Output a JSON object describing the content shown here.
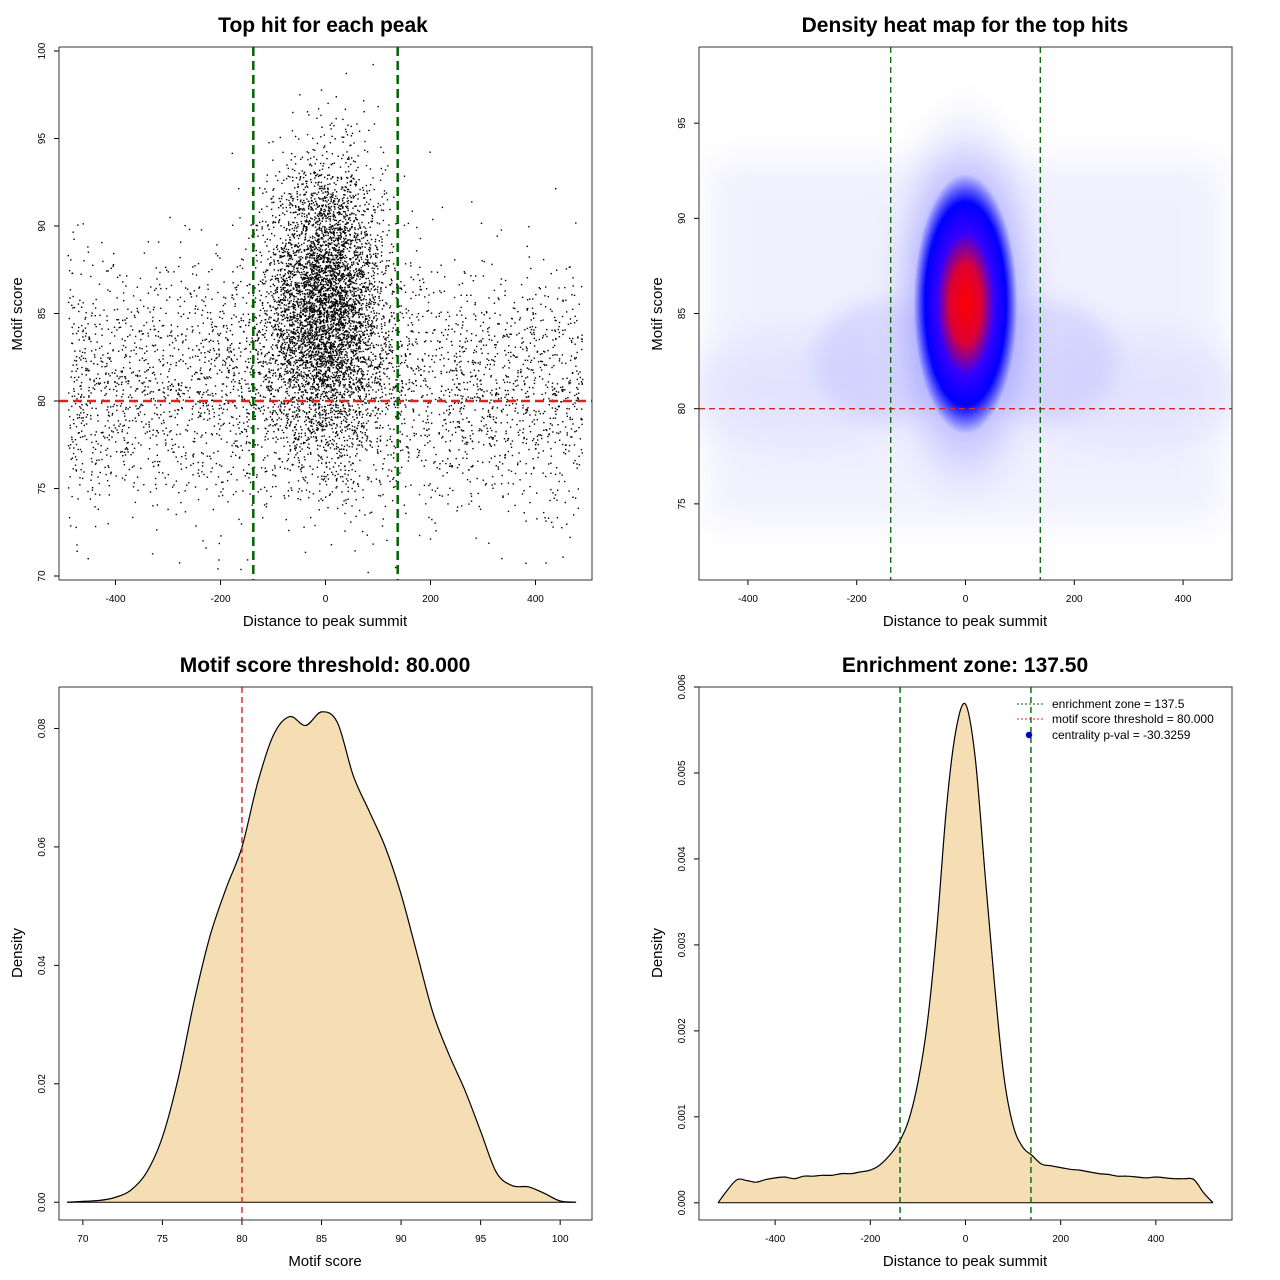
{
  "colors": {
    "points": "#000000",
    "threshold_line": "#dd2222",
    "zone_line": "#006400",
    "density_fill": "#f5deb3",
    "heat_low": "#ffffff",
    "heat_mid": "#0000ff",
    "heat_high": "#ff0000",
    "pval_marker": "#0000cc"
  },
  "chart_data": [
    {
      "id": "scatter",
      "type": "scatter",
      "title": "Top hit for each peak",
      "xlabel": "Distance to peak summit",
      "ylabel": "Motif score",
      "xlim": [
        -500,
        500
      ],
      "ylim": [
        70,
        100
      ],
      "xticks": [
        -400,
        -200,
        0,
        200,
        400
      ],
      "yticks": [
        70,
        75,
        80,
        85,
        90,
        95,
        100
      ],
      "threshold_y": 80,
      "zone_x": [
        -137.5,
        137.5
      ],
      "point_cloud": {
        "central_mean_x": 0,
        "central_sd_x": 55,
        "central_mean_y": 85.5,
        "central_sd_y": 4.0,
        "background_x_range": [
          -490,
          490
        ],
        "background_mean_y": 81,
        "background_sd_y": 3.5
      }
    },
    {
      "id": "heatmap",
      "type": "heatmap",
      "title": "Density heat map for the top hits",
      "xlabel": "Distance to peak summit",
      "ylabel": "Motif score",
      "xlim": [
        -490,
        490
      ],
      "ylim": [
        71,
        99
      ],
      "xticks": [
        -400,
        -200,
        0,
        200,
        400
      ],
      "yticks": [
        75,
        80,
        85,
        90,
        95
      ],
      "threshold_y": 80,
      "zone_x": [
        -137.5,
        137.5
      ],
      "peak": {
        "x": 0,
        "y": 85.5
      }
    },
    {
      "id": "score-density",
      "type": "area",
      "title": "Motif score threshold: 80.000",
      "xlabel": "Motif score",
      "ylabel": "Density",
      "xlim": [
        68.5,
        102
      ],
      "ylim": [
        -0.003,
        0.087
      ],
      "xticks": [
        70,
        75,
        80,
        85,
        90,
        95,
        100
      ],
      "yticks": [
        0.0,
        0.02,
        0.04,
        0.06,
        0.08
      ],
      "ytick_labels": [
        "0.00",
        "0.02",
        "0.04",
        "0.06",
        "0.08"
      ],
      "threshold_x": 80,
      "x": [
        69,
        71,
        72,
        73,
        74,
        75,
        76,
        77,
        78,
        79,
        80,
        81,
        82,
        83,
        84,
        85,
        86,
        87,
        88,
        89,
        90,
        91,
        92,
        93,
        94,
        95,
        96,
        97,
        98,
        99,
        100,
        101
      ],
      "y": [
        0,
        0.0003,
        0.0008,
        0.002,
        0.005,
        0.011,
        0.021,
        0.034,
        0.045,
        0.053,
        0.06,
        0.071,
        0.079,
        0.082,
        0.0805,
        0.0828,
        0.081,
        0.072,
        0.066,
        0.06,
        0.052,
        0.042,
        0.032,
        0.025,
        0.019,
        0.012,
        0.005,
        0.0028,
        0.0026,
        0.0015,
        0.0002,
        0
      ]
    },
    {
      "id": "distance-density",
      "type": "area",
      "title": "Enrichment zone: 137.50",
      "xlabel": "Distance to peak summit",
      "ylabel": "Density",
      "xlim": [
        -560,
        560
      ],
      "ylim": [
        -0.0002,
        0.006
      ],
      "xticks": [
        -400,
        -200,
        0,
        200,
        400
      ],
      "yticks": [
        0.0,
        0.001,
        0.002,
        0.003,
        0.004,
        0.005,
        0.006
      ],
      "ytick_labels": [
        "0.000",
        "0.001",
        "0.002",
        "0.003",
        "0.004",
        "0.005",
        "0.006"
      ],
      "zone_x": [
        -137.5,
        137.5
      ],
      "x": [
        -520,
        -500,
        -480,
        -460,
        -440,
        -420,
        -400,
        -380,
        -360,
        -340,
        -320,
        -300,
        -280,
        -260,
        -240,
        -220,
        -200,
        -180,
        -160,
        -140,
        -120,
        -100,
        -80,
        -60,
        -40,
        -20,
        0,
        20,
        40,
        60,
        80,
        100,
        120,
        140,
        160,
        180,
        200,
        220,
        240,
        260,
        280,
        300,
        320,
        340,
        360,
        380,
        400,
        420,
        440,
        460,
        480,
        500,
        520
      ],
      "y": [
        0,
        0.00015,
        0.00027,
        0.00026,
        0.00024,
        0.00027,
        0.00029,
        0.0003,
        0.00028,
        0.00031,
        0.00031,
        0.00032,
        0.00032,
        0.00034,
        0.00034,
        0.00036,
        0.00038,
        0.00044,
        0.00055,
        0.0007,
        0.00095,
        0.0014,
        0.0021,
        0.0032,
        0.0046,
        0.0055,
        0.0058,
        0.0052,
        0.0039,
        0.0026,
        0.0015,
        0.0009,
        0.00065,
        0.00055,
        0.00045,
        0.00043,
        0.00041,
        0.00039,
        0.00038,
        0.00036,
        0.00034,
        0.00033,
        0.00031,
        0.00031,
        0.0003,
        0.00029,
        0.0003,
        0.00029,
        0.00028,
        0.00028,
        0.00027,
        0.00012,
        0
      ]
    }
  ],
  "legend": {
    "items": [
      {
        "label": "enrichment zone = 137.5",
        "kind": "dotted",
        "color": "#006400"
      },
      {
        "label": "motif score threshold = 80.000",
        "kind": "dotted",
        "color": "#dd2222"
      },
      {
        "label": "centrality p-val = -30.3259",
        "kind": "point",
        "color": "#0000cc"
      }
    ]
  }
}
